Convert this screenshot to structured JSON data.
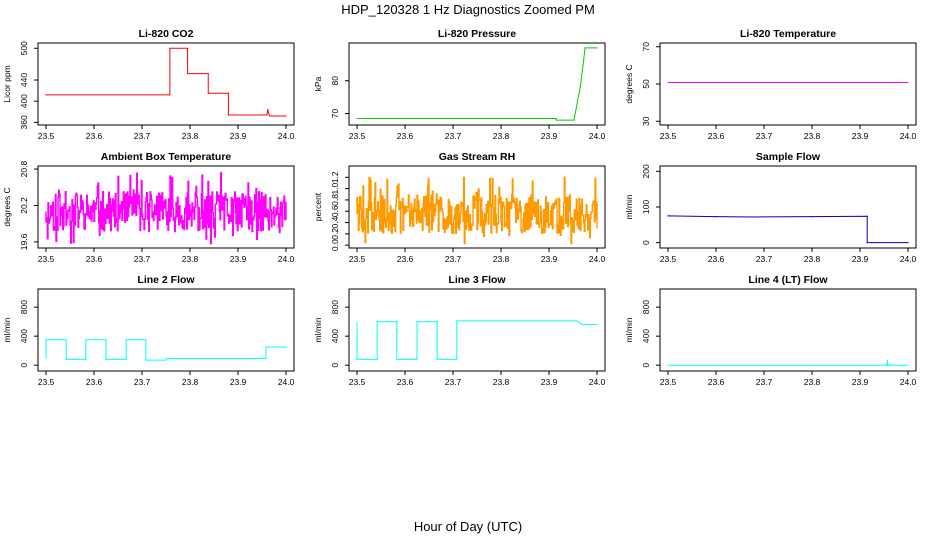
{
  "figure": {
    "title": "HDP_120328  1 Hz Diagnostics Zoomed PM",
    "xlabel": "Hour of Day (UTC)"
  },
  "chart_data": [
    {
      "type": "line",
      "title": "Li-820 CO2",
      "ylabel": "Licor ppm",
      "color": "#ff0000",
      "xlim": [
        23.5,
        24.0
      ],
      "ylim": [
        355,
        510
      ],
      "xticks": [
        23.5,
        23.6,
        23.7,
        23.8,
        23.9,
        24.0
      ],
      "yticks": [
        360,
        400,
        440,
        500
      ],
      "x": [
        23.5,
        23.758,
        23.758,
        23.795,
        23.795,
        23.838,
        23.838,
        23.88,
        23.88,
        23.96,
        23.962,
        23.964,
        23.966,
        24.0
      ],
      "y": [
        412,
        412,
        500,
        500,
        452,
        452,
        415,
        415,
        374,
        374,
        384,
        377,
        372,
        372
      ]
    },
    {
      "type": "line",
      "title": "Li-820 Pressure",
      "ylabel": "kPa",
      "color": "#00cc00",
      "xlim": [
        23.5,
        24.0
      ],
      "ylim": [
        66.5,
        91.5
      ],
      "xticks": [
        23.5,
        23.6,
        23.7,
        23.8,
        23.9,
        24.0
      ],
      "yticks": [
        70,
        80
      ],
      "x": [
        23.5,
        23.915,
        23.915,
        23.952,
        23.965,
        23.972,
        23.975,
        24.0
      ],
      "y": [
        68.5,
        68.5,
        68.0,
        68.0,
        78.0,
        86.0,
        90.0,
        90.0
      ]
    },
    {
      "type": "line",
      "title": "Li-820 Temperature",
      "ylabel": "degrees C",
      "color": "#ff00ff",
      "xlim": [
        23.5,
        24.0
      ],
      "ylim": [
        28,
        72
      ],
      "xticks": [
        23.5,
        23.6,
        23.7,
        23.8,
        23.9,
        24.0
      ],
      "yticks": [
        30,
        50,
        70
      ],
      "x": [
        23.5,
        24.0
      ],
      "y": [
        50.8,
        50.8
      ]
    },
    {
      "type": "line",
      "title": "Ambient Box Temperature",
      "ylabel": "degrees C",
      "color": "#ff00ff",
      "xlim": [
        23.5,
        24.0
      ],
      "ylim": [
        19.5,
        20.85
      ],
      "xticks": [
        23.5,
        23.6,
        23.7,
        23.8,
        23.9,
        24.0
      ],
      "yticks": [
        19.6,
        20.2,
        20.8
      ],
      "noise_band": {
        "center": 20.1,
        "low": 19.55,
        "high": 20.75,
        "seed": 11
      }
    },
    {
      "type": "line",
      "title": "Gas Stream RH",
      "ylabel": "percent",
      "color": "#ff9900",
      "xlim": [
        23.5,
        24.0
      ],
      "ylim": [
        -0.05,
        1.4
      ],
      "xticks": [
        23.5,
        23.6,
        23.7,
        23.8,
        23.9,
        24.0
      ],
      "yticks": [
        0.0,
        0.2,
        0.4,
        0.6,
        0.8,
        1.0,
        1.2
      ],
      "noise_band": {
        "center": 0.55,
        "low": 0.0,
        "high": 1.25,
        "seed": 29
      }
    },
    {
      "type": "line",
      "title": "Sample Flow",
      "ylabel": "ml/min",
      "color": "#0000cc",
      "xlim": [
        23.5,
        24.0
      ],
      "ylim": [
        -15,
        215
      ],
      "xticks": [
        23.5,
        23.6,
        23.7,
        23.8,
        23.9,
        24.0
      ],
      "yticks": [
        0,
        100,
        200
      ],
      "x": [
        23.5,
        23.6,
        23.68,
        23.8,
        23.915,
        23.915,
        23.925,
        24.0
      ],
      "y": [
        75,
        73,
        72,
        73,
        74,
        0,
        0,
        0
      ]
    },
    {
      "type": "line",
      "title": "Line 2 Flow",
      "ylabel": "ml/min",
      "color": "#00ffff",
      "xlim": [
        23.5,
        24.0
      ],
      "ylim": [
        -80,
        1050
      ],
      "xticks": [
        23.5,
        23.6,
        23.7,
        23.8,
        23.9,
        24.0
      ],
      "yticks": [
        0,
        400,
        800
      ],
      "x": [
        23.5,
        23.5,
        23.542,
        23.542,
        23.583,
        23.583,
        23.625,
        23.625,
        23.667,
        23.667,
        23.708,
        23.708,
        23.75,
        23.75,
        23.958,
        23.958,
        24.0
      ],
      "y": [
        100,
        350,
        350,
        80,
        80,
        350,
        350,
        80,
        80,
        350,
        350,
        70,
        70,
        90,
        90,
        250,
        250
      ]
    },
    {
      "type": "line",
      "title": "Line 3 Flow",
      "ylabel": "ml/min",
      "color": "#00ffff",
      "xlim": [
        23.5,
        24.0
      ],
      "ylim": [
        -80,
        1050
      ],
      "xticks": [
        23.5,
        23.6,
        23.7,
        23.8,
        23.9,
        24.0
      ],
      "yticks": [
        0,
        400,
        800
      ],
      "x": [
        23.5,
        23.5,
        23.5,
        23.542,
        23.542,
        23.583,
        23.583,
        23.625,
        23.625,
        23.667,
        23.667,
        23.708,
        23.708,
        23.958,
        23.968,
        24.0
      ],
      "y": [
        580,
        100,
        80,
        80,
        600,
        600,
        80,
        80,
        600,
        600,
        80,
        80,
        610,
        610,
        560,
        560
      ]
    },
    {
      "type": "line",
      "title": "Line 4 (LT) Flow",
      "ylabel": "ml/min",
      "color": "#00ffff",
      "xlim": [
        23.5,
        24.0
      ],
      "ylim": [
        -80,
        1050
      ],
      "xticks": [
        23.5,
        23.6,
        23.7,
        23.8,
        23.9,
        24.0
      ],
      "yticks": [
        0,
        400,
        800
      ],
      "x": [
        23.5,
        23.956,
        23.957,
        23.958,
        23.959,
        24.0
      ],
      "y": [
        0,
        0,
        70,
        0,
        0,
        0
      ]
    }
  ]
}
